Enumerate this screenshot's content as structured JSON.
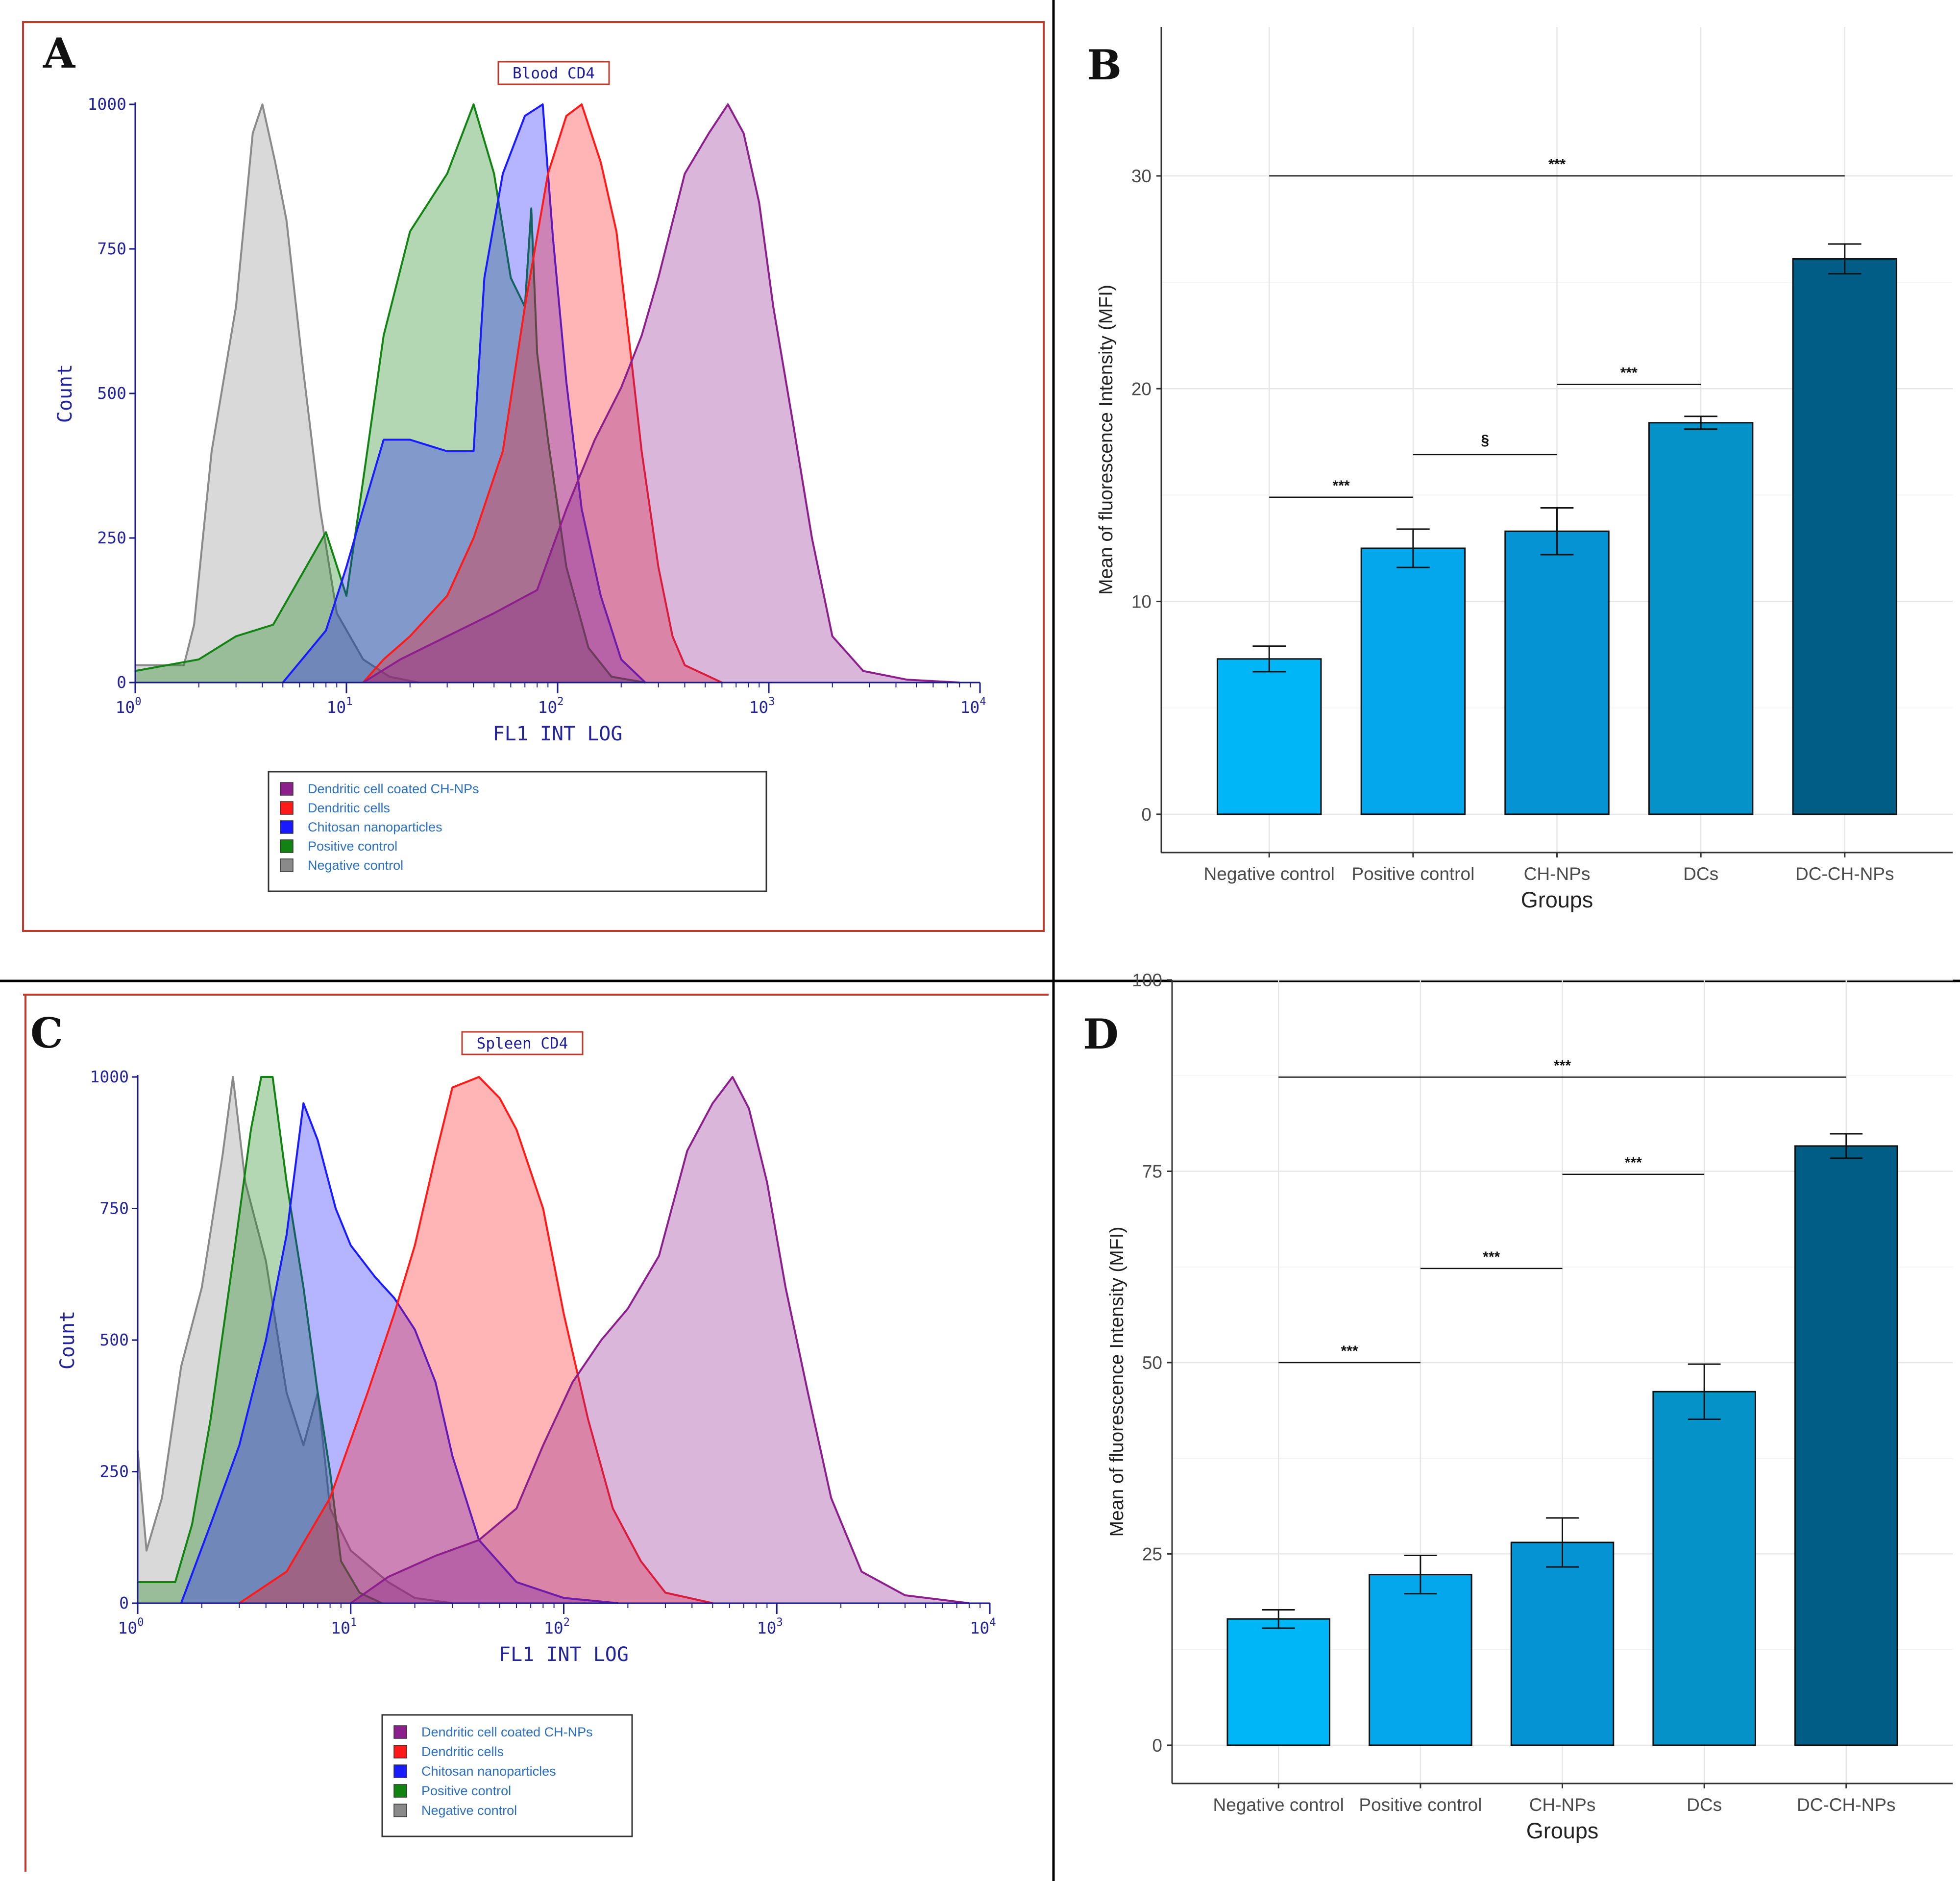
{
  "panels": {
    "A": {
      "letter": "A"
    },
    "B": {
      "letter": "B"
    },
    "C": {
      "letter": "C"
    },
    "D": {
      "letter": "D"
    }
  },
  "colors": {
    "dc_chnps": "#8b1f8b",
    "dcs": "#ff1a1a",
    "chnps": "#1a1aff",
    "positive": "#128312",
    "negative": "#8a8a8a",
    "bar_1": "#00b6f7",
    "bar_2": "#04a7ec",
    "bar_3": "#0693d3",
    "bar_4": "#0492c9",
    "bar_5": "#015d86",
    "frame_red": "#c0392b",
    "hist_axis": "#1a1a8a"
  },
  "chart_data": [
    {
      "id": "A",
      "type": "histogram",
      "title": "Blood CD4",
      "xlabel": "FL1 INT LOG",
      "ylabel": "Count",
      "xscale": "log",
      "xlim": [
        1,
        10000
      ],
      "ylim": [
        0,
        1000
      ],
      "x_ticks": [
        {
          "base": "10",
          "exp": "0"
        },
        {
          "base": "10",
          "exp": "1"
        },
        {
          "base": "10",
          "exp": "2"
        },
        {
          "base": "10",
          "exp": "3"
        },
        {
          "base": "10",
          "exp": "4"
        }
      ],
      "y_ticks": [
        "0",
        "250",
        "500",
        "750",
        "1000"
      ],
      "legend": [
        {
          "key": "dc_chnps",
          "label": "Dendritic cell coated CH-NPs"
        },
        {
          "key": "dcs",
          "label": "Dendritic cells"
        },
        {
          "key": "chnps",
          "label": "Chitosan nanoparticles"
        },
        {
          "key": "positive",
          "label": "Positive control"
        },
        {
          "key": "negative",
          "label": "Negative control"
        }
      ],
      "series": [
        {
          "key": "negative",
          "name": "Negative control",
          "points": [
            [
              1,
              30
            ],
            [
              1.7,
              30
            ],
            [
              1.9,
              100
            ],
            [
              2.3,
              400
            ],
            [
              3,
              650
            ],
            [
              3.6,
              950
            ],
            [
              4,
              1000
            ],
            [
              4.6,
              900
            ],
            [
              5.2,
              800
            ],
            [
              6.2,
              550
            ],
            [
              7.5,
              300
            ],
            [
              9,
              120
            ],
            [
              12,
              40
            ],
            [
              16,
              10
            ],
            [
              22,
              0
            ]
          ]
        },
        {
          "key": "positive",
          "name": "Positive control",
          "points": [
            [
              1,
              20
            ],
            [
              2,
              40
            ],
            [
              3,
              80
            ],
            [
              4.5,
              100
            ],
            [
              6,
              180
            ],
            [
              8,
              260
            ],
            [
              10,
              150
            ],
            [
              12,
              350
            ],
            [
              15,
              600
            ],
            [
              20,
              780
            ],
            [
              30,
              880
            ],
            [
              40,
              1000
            ],
            [
              50,
              880
            ],
            [
              60,
              700
            ],
            [
              70,
              650
            ],
            [
              75,
              820
            ],
            [
              80,
              570
            ],
            [
              90,
              420
            ],
            [
              110,
              200
            ],
            [
              140,
              60
            ],
            [
              180,
              10
            ],
            [
              260,
              0
            ]
          ]
        },
        {
          "key": "chnps",
          "name": "Chitosan nanoparticles",
          "points": [
            [
              5,
              0
            ],
            [
              8,
              90
            ],
            [
              10,
              200
            ],
            [
              12,
              300
            ],
            [
              15,
              420
            ],
            [
              20,
              420
            ],
            [
              30,
              400
            ],
            [
              40,
              400
            ],
            [
              45,
              700
            ],
            [
              55,
              880
            ],
            [
              70,
              980
            ],
            [
              85,
              1000
            ],
            [
              95,
              770
            ],
            [
              110,
              520
            ],
            [
              130,
              300
            ],
            [
              160,
              150
            ],
            [
              200,
              40
            ],
            [
              260,
              0
            ]
          ]
        },
        {
          "key": "dcs",
          "name": "Dendritic cells",
          "points": [
            [
              12,
              0
            ],
            [
              15,
              40
            ],
            [
              20,
              80
            ],
            [
              30,
              150
            ],
            [
              40,
              250
            ],
            [
              55,
              400
            ],
            [
              70,
              650
            ],
            [
              90,
              880
            ],
            [
              110,
              980
            ],
            [
              130,
              1000
            ],
            [
              160,
              900
            ],
            [
              190,
              780
            ],
            [
              220,
              580
            ],
            [
              250,
              400
            ],
            [
              300,
              200
            ],
            [
              350,
              80
            ],
            [
              400,
              30
            ],
            [
              600,
              0
            ]
          ]
        },
        {
          "key": "dc_chnps",
          "name": "Dendritic cell coated CH-NPs",
          "points": [
            [
              12,
              0
            ],
            [
              18,
              40
            ],
            [
              30,
              80
            ],
            [
              50,
              120
            ],
            [
              80,
              160
            ],
            [
              110,
              300
            ],
            [
              150,
              420
            ],
            [
              200,
              510
            ],
            [
              250,
              600
            ],
            [
              300,
              700
            ],
            [
              400,
              880
            ],
            [
              520,
              950
            ],
            [
              640,
              1000
            ],
            [
              760,
              950
            ],
            [
              900,
              830
            ],
            [
              1050,
              650
            ],
            [
              1300,
              450
            ],
            [
              1600,
              250
            ],
            [
              2000,
              80
            ],
            [
              2800,
              20
            ],
            [
              4500,
              5
            ],
            [
              8000,
              0
            ]
          ]
        }
      ]
    },
    {
      "id": "B",
      "type": "bar",
      "categories": [
        "Negative control",
        "Positive control",
        "CH-NPs",
        "DCs",
        "DC-CH-NPs"
      ],
      "values": [
        7.3,
        12.5,
        13.3,
        18.4,
        26.1
      ],
      "errors": [
        0.6,
        0.9,
        1.1,
        0.3,
        0.7
      ],
      "bar_colors": [
        "bar_1",
        "bar_2",
        "bar_3",
        "bar_4",
        "bar_5"
      ],
      "xlabel": "Groups",
      "ylabel": "Mean of fluorescence Intensity (MFI)",
      "ylim": [
        -1.8,
        37
      ],
      "y_ticks": [
        "0",
        "10",
        "20",
        "30"
      ],
      "significance": [
        {
          "from": 0,
          "to": 1,
          "y": 14.9,
          "label": "***"
        },
        {
          "from": 1,
          "to": 2,
          "y": 16.9,
          "label": "§"
        },
        {
          "from": 2,
          "to": 3,
          "y": 20.2,
          "label": "***"
        },
        {
          "from": 0,
          "to": 4,
          "y": 30.0,
          "label": "***"
        }
      ]
    },
    {
      "id": "C",
      "type": "histogram",
      "title": "Spleen CD4",
      "xlabel": "FL1 INT LOG",
      "ylabel": "Count",
      "xscale": "log",
      "xlim": [
        1,
        10000
      ],
      "ylim": [
        0,
        1000
      ],
      "x_ticks": [
        {
          "base": "10",
          "exp": "0"
        },
        {
          "base": "10",
          "exp": "1"
        },
        {
          "base": "10",
          "exp": "2"
        },
        {
          "base": "10",
          "exp": "3"
        },
        {
          "base": "10",
          "exp": "4"
        }
      ],
      "y_ticks": [
        "0",
        "250",
        "500",
        "750",
        "1000"
      ],
      "legend": [
        {
          "key": "dc_chnps",
          "label": "Dendritic cell coated CH-NPs"
        },
        {
          "key": "dcs",
          "label": "Dendritic cells"
        },
        {
          "key": "chnps",
          "label": "Chitosan nanoparticles"
        },
        {
          "key": "positive",
          "label": "Positive control"
        },
        {
          "key": "negative",
          "label": "Negative control"
        }
      ],
      "series": [
        {
          "key": "negative",
          "name": "Negative control",
          "points": [
            [
              1,
              290
            ],
            [
              1.1,
              100
            ],
            [
              1.3,
              200
            ],
            [
              1.6,
              450
            ],
            [
              2,
              600
            ],
            [
              2.5,
              850
            ],
            [
              2.8,
              1000
            ],
            [
              3.2,
              800
            ],
            [
              4,
              650
            ],
            [
              5,
              400
            ],
            [
              6,
              300
            ],
            [
              7,
              400
            ],
            [
              8,
              180
            ],
            [
              10,
              100
            ],
            [
              15,
              40
            ],
            [
              20,
              10
            ],
            [
              30,
              0
            ]
          ]
        },
        {
          "key": "positive",
          "name": "Positive control",
          "points": [
            [
              1,
              40
            ],
            [
              1.5,
              40
            ],
            [
              1.8,
              150
            ],
            [
              2.2,
              350
            ],
            [
              2.8,
              650
            ],
            [
              3.4,
              900
            ],
            [
              3.8,
              1000
            ],
            [
              4.3,
              1000
            ],
            [
              5,
              800
            ],
            [
              6,
              600
            ],
            [
              7,
              400
            ],
            [
              8,
              250
            ],
            [
              9,
              80
            ],
            [
              11,
              20
            ],
            [
              14,
              0
            ]
          ]
        },
        {
          "key": "chnps",
          "name": "Chitosan nanoparticles",
          "points": [
            [
              1.6,
              0
            ],
            [
              2.2,
              150
            ],
            [
              3,
              300
            ],
            [
              4,
              500
            ],
            [
              5,
              700
            ],
            [
              6,
              950
            ],
            [
              7,
              880
            ],
            [
              8.5,
              750
            ],
            [
              10,
              680
            ],
            [
              13,
              620
            ],
            [
              16,
              580
            ],
            [
              20,
              520
            ],
            [
              25,
              420
            ],
            [
              30,
              280
            ],
            [
              40,
              120
            ],
            [
              60,
              40
            ],
            [
              100,
              10
            ],
            [
              180,
              0
            ]
          ]
        },
        {
          "key": "dcs",
          "name": "Dendritic cells",
          "points": [
            [
              3,
              0
            ],
            [
              5,
              60
            ],
            [
              8,
              200
            ],
            [
              12,
              400
            ],
            [
              16,
              550
            ],
            [
              20,
              680
            ],
            [
              25,
              850
            ],
            [
              30,
              980
            ],
            [
              40,
              1000
            ],
            [
              50,
              960
            ],
            [
              60,
              900
            ],
            [
              80,
              750
            ],
            [
              100,
              550
            ],
            [
              130,
              350
            ],
            [
              170,
              180
            ],
            [
              230,
              80
            ],
            [
              300,
              20
            ],
            [
              500,
              0
            ]
          ]
        },
        {
          "key": "dc_chnps",
          "name": "Dendritic cell coated CH-NPs",
          "points": [
            [
              10,
              0
            ],
            [
              15,
              50
            ],
            [
              25,
              90
            ],
            [
              40,
              120
            ],
            [
              60,
              180
            ],
            [
              80,
              300
            ],
            [
              110,
              420
            ],
            [
              150,
              500
            ],
            [
              200,
              560
            ],
            [
              280,
              660
            ],
            [
              380,
              860
            ],
            [
              500,
              950
            ],
            [
              620,
              1000
            ],
            [
              740,
              940
            ],
            [
              900,
              800
            ],
            [
              1100,
              600
            ],
            [
              1400,
              400
            ],
            [
              1800,
              200
            ],
            [
              2500,
              60
            ],
            [
              4000,
              15
            ],
            [
              8000,
              0
            ]
          ]
        }
      ]
    },
    {
      "id": "D",
      "type": "bar",
      "categories": [
        "Negative control",
        "Positive control",
        "CH-NPs",
        "DCs",
        "DC-CH-NPs"
      ],
      "values": [
        16.5,
        22.3,
        26.5,
        46.2,
        78.3
      ],
      "errors": [
        1.2,
        2.5,
        3.2,
        3.6,
        1.6
      ],
      "bar_colors": [
        "bar_1",
        "bar_2",
        "bar_3",
        "bar_4",
        "bar_5"
      ],
      "xlabel": "Groups",
      "ylabel": "Mean of fluorescence Intensity (MFI)",
      "ylim": [
        -5,
        100
      ],
      "y_ticks": [
        "0",
        "25",
        "50",
        "75",
        "100"
      ],
      "significance": [
        {
          "from": 0,
          "to": 1,
          "y": 50.0,
          "label": "***"
        },
        {
          "from": 1,
          "to": 2,
          "y": 62.3,
          "label": "***"
        },
        {
          "from": 2,
          "to": 3,
          "y": 74.6,
          "label": "***"
        },
        {
          "from": 0,
          "to": 4,
          "y": 87.3,
          "label": "***"
        }
      ]
    }
  ]
}
